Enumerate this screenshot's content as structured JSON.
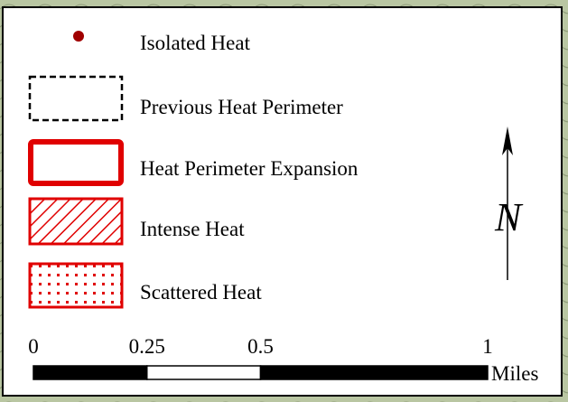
{
  "legend": {
    "items": [
      {
        "label": "Isolated Heat"
      },
      {
        "label": "Previous Heat Perimeter"
      },
      {
        "label": "Heat Perimeter Expansion"
      },
      {
        "label": "Intense Heat"
      },
      {
        "label": "Scattered Heat"
      }
    ]
  },
  "north_arrow": {
    "label": "N"
  },
  "scale_bar": {
    "ticks": [
      0,
      0.25,
      0.5,
      1
    ],
    "unit": "Miles"
  }
}
